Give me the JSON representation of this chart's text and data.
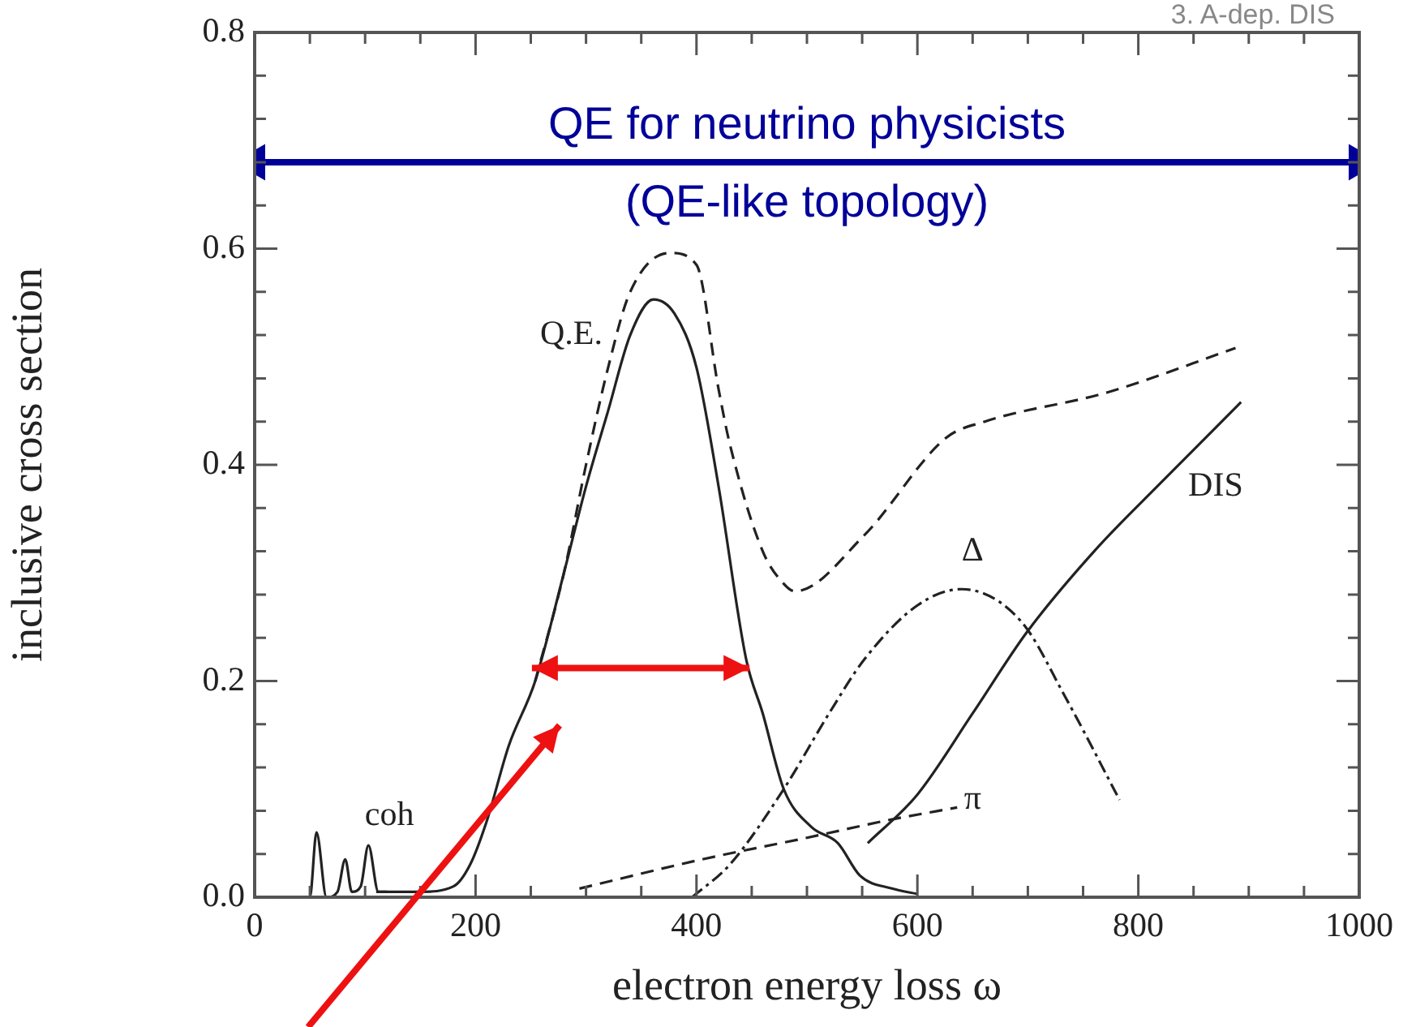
{
  "chart_data": {
    "type": "line",
    "xlabel": "electron energy loss ω",
    "ylabel": "inclusive cross section",
    "xlim": [
      0,
      1000
    ],
    "ylim": [
      0,
      0.8
    ],
    "xticks": [
      0,
      {
        "value": 50,
        "label": null
      },
      {
        "value": 100,
        "label": null
      },
      {
        "value": 150,
        "label": null
      },
      200,
      {
        "value": 250,
        "label": null
      },
      {
        "value": 300,
        "label": null
      },
      {
        "value": 350,
        "label": null
      },
      400,
      {
        "value": 450,
        "label": null
      },
      {
        "value": 500,
        "label": null
      },
      {
        "value": 550,
        "label": null
      },
      600,
      {
        "value": 650,
        "label": null
      },
      {
        "value": 700,
        "label": null
      },
      {
        "value": 750,
        "label": null
      },
      800,
      {
        "value": 850,
        "label": null
      },
      {
        "value": 900,
        "label": null
      },
      {
        "value": 950,
        "label": null
      },
      1000
    ],
    "yticks": [
      {
        "value": 0,
        "label": "0.0"
      },
      {
        "value": 0.04,
        "label": null
      },
      {
        "value": 0.08,
        "label": null
      },
      {
        "value": 0.12,
        "label": null
      },
      {
        "value": 0.16,
        "label": null
      },
      0.2,
      {
        "value": 0.24,
        "label": null
      },
      {
        "value": 0.28,
        "label": null
      },
      {
        "value": 0.32,
        "label": null
      },
      {
        "value": 0.36,
        "label": null
      },
      0.4,
      {
        "value": 0.44,
        "label": null
      },
      {
        "value": 0.48,
        "label": null
      },
      {
        "value": 0.52,
        "label": null
      },
      {
        "value": 0.56,
        "label": null
      },
      0.6,
      {
        "value": 0.64,
        "label": null
      },
      {
        "value": 0.68,
        "label": null
      },
      {
        "value": 0.72,
        "label": null
      },
      {
        "value": 0.76,
        "label": null
      },
      0.8
    ],
    "grid": false,
    "legend": false,
    "marker": "none",
    "annotations": [
      "QE for neutrino physicists",
      "(QE-like topology)",
      "3. A-dep. DIS"
    ],
    "series": [
      {
        "color": "#222222",
        "line_style": "dashed",
        "x": [
          254,
          280,
          300,
          320,
          340,
          376,
          400,
          420,
          430,
          460,
          479,
          489,
          552,
          626,
          661,
          772,
          888
        ],
        "values": [
          0.2,
          0.3,
          0.4,
          0.49,
          0.56,
          0.596,
          0.585,
          0.47,
          0.42,
          0.32,
          0.29,
          0.283,
          0.335,
          0.425,
          0.44,
          0.467,
          0.508
        ]
      },
      {
        "name": "Q.E.",
        "color": "#222222",
        "line_style": "solid",
        "x": [
          110,
          150,
          180,
          195,
          210,
          230,
          254,
          280,
          300,
          320,
          340,
          361,
          380,
          400,
          420,
          445,
          460,
          479,
          504,
          528,
          548,
          577,
          600
        ],
        "values": [
          0.005,
          0.005,
          0.01,
          0.03,
          0.07,
          0.14,
          0.2,
          0.3,
          0.38,
          0.45,
          0.52,
          0.553,
          0.54,
          0.49,
          0.38,
          0.22,
          0.17,
          0.1,
          0.065,
          0.05,
          0.02,
          0.008,
          0.003
        ]
      },
      {
        "name": "coh",
        "color": "#222222",
        "line_style": "solid",
        "x": [
          40,
          50,
          56,
          65,
          75,
          82,
          88,
          96,
          103,
          112,
          120
        ],
        "values": [
          0,
          0,
          0.06,
          0,
          0.005,
          0.035,
          0.005,
          0.01,
          0.048,
          0.005,
          0.005
        ]
      },
      {
        "name": "Δ",
        "color": "#222222",
        "line_style": "dashdot",
        "x": [
          396,
          430,
          479,
          520,
          552,
          600,
          640,
          694,
          734,
          783
        ],
        "values": [
          0,
          0.03,
          0.1,
          0.17,
          0.22,
          0.27,
          0.285,
          0.255,
          0.185,
          0.09
        ]
      },
      {
        "name": "π",
        "color": "#222222",
        "line_style": "dashed",
        "x": [
          294,
          405,
          500,
          577,
          636
        ],
        "values": [
          0.008,
          0.035,
          0.055,
          0.072,
          0.083
        ]
      },
      {
        "name": "DIS",
        "color": "#222222",
        "line_style": "solid",
        "x": [
          555,
          600,
          650,
          699,
          760,
          822,
          893
        ],
        "values": [
          0.05,
          0.095,
          0.17,
          0.245,
          0.32,
          0.385,
          0.458
        ]
      },
      {
        "color": "#000099",
        "line_style": "solid",
        "marker": "triangle",
        "x": [
          0,
          1000
        ],
        "values": [
          0.68,
          0.68
        ]
      }
    ]
  }
}
